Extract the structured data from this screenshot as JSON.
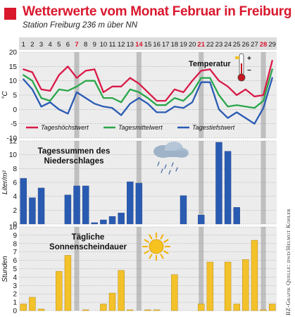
{
  "title": "Wetterwerte vom Monat Februar in Freiburg",
  "subtitle": "Station Freiburg 236 m über NN",
  "credit": "BZ-Grafik  Quelle: dwd/Helmut Kohler",
  "colors": {
    "accent": "#d9182e",
    "header_band": "#dcdcdc",
    "panel_bg": "#ececec",
    "weekend": "#bfbfbf",
    "max": "#d91a48",
    "mean": "#2aa64a",
    "min": "#2a5bb3",
    "precip": "#2a5bb3",
    "sun": "#f3c12a"
  },
  "days": [
    "1",
    "2",
    "3",
    "4",
    "5",
    "6",
    "7",
    "8",
    "9",
    "10",
    "11",
    "12",
    "13",
    "14",
    "15",
    "16",
    "17",
    "18",
    "19",
    "20",
    "21",
    "22",
    "23",
    "24",
    "25",
    "26",
    "27",
    "28",
    "29"
  ],
  "highlight_days": [
    7,
    14,
    21,
    28
  ],
  "chart_data": [
    {
      "type": "line",
      "title": "Temperatur",
      "ylabel": "°C",
      "ylim": [
        -10,
        20
      ],
      "yticks": [
        -10,
        -5,
        0,
        5,
        10,
        15,
        20
      ],
      "x": [
        1,
        2,
        3,
        4,
        5,
        6,
        7,
        8,
        9,
        10,
        11,
        12,
        13,
        14,
        15,
        16,
        17,
        18,
        19,
        20,
        21,
        22,
        23,
        24,
        25,
        26,
        27,
        28,
        29
      ],
      "series": [
        {
          "name": "Tageshöchstwert",
          "color": "#d91a48",
          "values": [
            14,
            13,
            7,
            6.5,
            12,
            15,
            11,
            13.5,
            14,
            6,
            8,
            8,
            11,
            9,
            6,
            3,
            3,
            7,
            6,
            10,
            13.5,
            14,
            10,
            8,
            5,
            7,
            4.5,
            5,
            17
          ]
        },
        {
          "name": "Tagesmittelwert",
          "color": "#2aa64a",
          "values": [
            12,
            10,
            4,
            3,
            7,
            6.5,
            8,
            10,
            10,
            4,
            4,
            2.5,
            7,
            6,
            4,
            1.5,
            1.5,
            4,
            3,
            6,
            11,
            11,
            5,
            1,
            1.5,
            1,
            0.5,
            3,
            14
          ]
        },
        {
          "name": "Tagestiefstwert",
          "color": "#2a5bb3",
          "values": [
            10.5,
            7,
            1,
            2.5,
            0,
            -1.5,
            6,
            4,
            2,
            1,
            0.5,
            -2,
            2,
            4,
            2,
            -1,
            -1,
            1,
            0.5,
            2.5,
            9.5,
            9.5,
            0,
            -3,
            -1,
            -3,
            -5,
            0.5,
            11
          ]
        }
      ]
    },
    {
      "type": "bar",
      "title": "Tagessummen des Niederschlages",
      "ylabel": "Liter/m²",
      "ylim": [
        0,
        12
      ],
      "yticks": [
        0,
        2,
        4,
        6,
        8,
        10,
        12
      ],
      "x": [
        1,
        2,
        3,
        4,
        5,
        6,
        7,
        8,
        9,
        10,
        11,
        12,
        13,
        14,
        15,
        16,
        17,
        18,
        19,
        20,
        21,
        22,
        23,
        24,
        25,
        26,
        27,
        28,
        29
      ],
      "values": [
        6.6,
        3.8,
        5.2,
        0,
        0,
        4.2,
        5.5,
        5.5,
        0.2,
        0.6,
        1.1,
        1.6,
        6.1,
        5.9,
        0,
        0,
        0,
        0,
        4.1,
        0,
        1.3,
        0,
        11.8,
        10.5,
        2.4,
        0,
        0,
        0,
        0
      ],
      "color": "#2a5bb3"
    },
    {
      "type": "bar",
      "title": "Tägliche Sonnenscheindauer",
      "ylabel": "Stunden",
      "ylim": [
        0,
        10
      ],
      "yticks": [
        0,
        1,
        2,
        3,
        4,
        5,
        6,
        7,
        8,
        9,
        10
      ],
      "x": [
        1,
        2,
        3,
        4,
        5,
        6,
        7,
        8,
        9,
        10,
        11,
        12,
        13,
        14,
        15,
        16,
        17,
        18,
        19,
        20,
        21,
        22,
        23,
        24,
        25,
        26,
        27,
        28,
        29
      ],
      "values": [
        0.8,
        1.6,
        0.2,
        0,
        4.7,
        6.6,
        0,
        0.1,
        0,
        0.8,
        2.1,
        4.8,
        0.1,
        0,
        0.1,
        0.1,
        0,
        4.3,
        0,
        0,
        0.8,
        5.8,
        0,
        5.8,
        0.8,
        6.1,
        8.4,
        0.1,
        0.8
      ],
      "color": "#f3c12a"
    }
  ]
}
